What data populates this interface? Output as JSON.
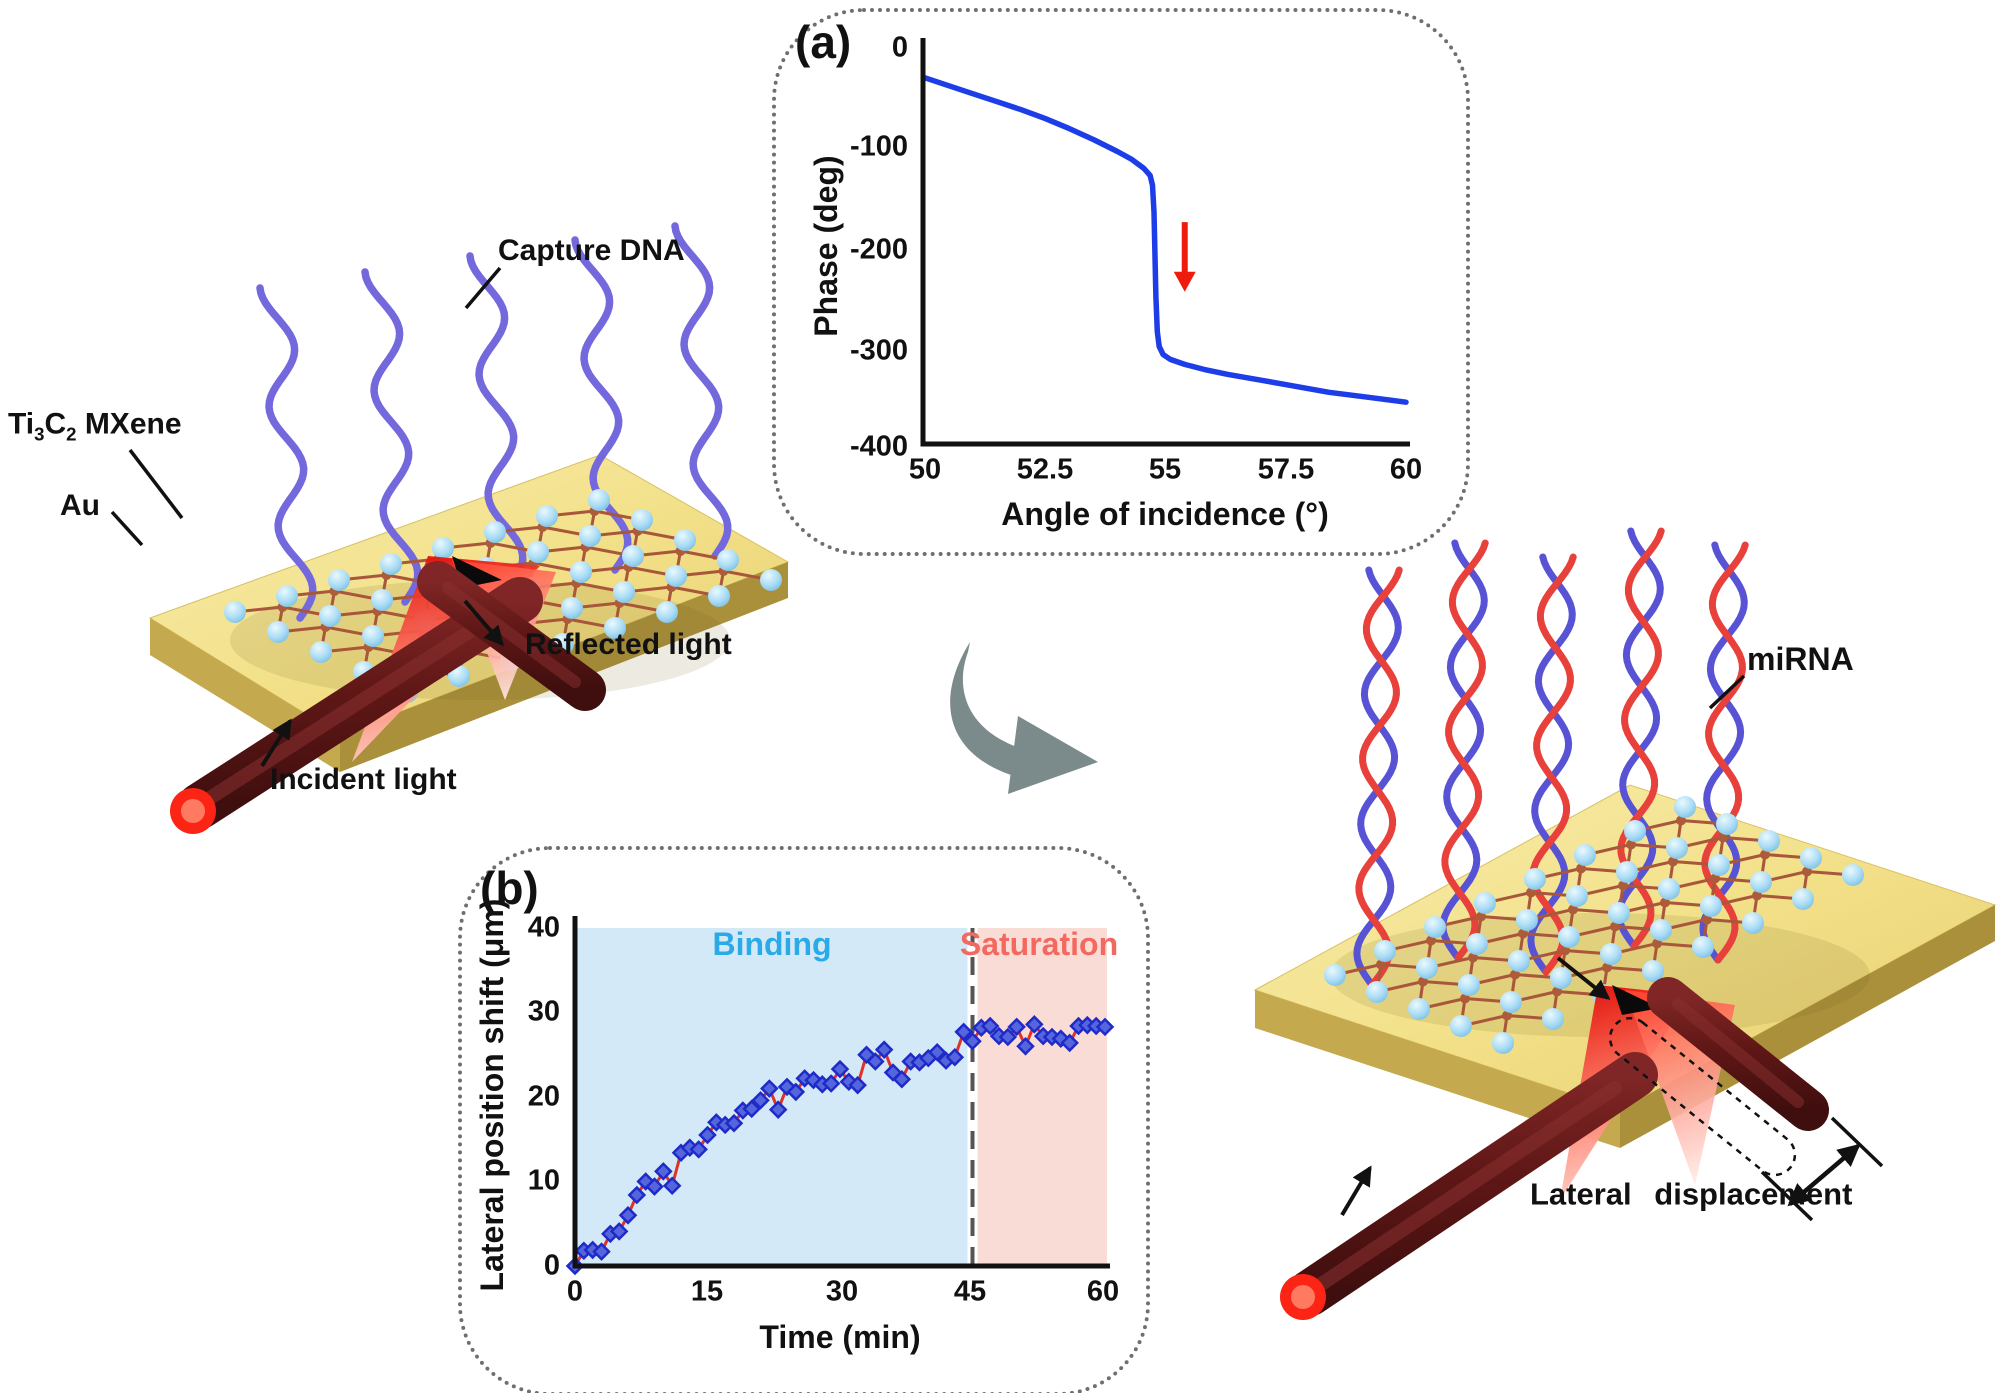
{
  "figure": {
    "panel_a_label": "(a)",
    "panel_b_label": "(b)"
  },
  "left_illustration": {
    "capture_dna_label": "Capture DNA",
    "mxene_label": {
      "pre": "Ti",
      "sub1": "3",
      "mid": "C",
      "sub2": "2",
      "post": " MXene"
    },
    "au_label": "Au",
    "reflected_light_label": "Reflected light",
    "incident_light_label": "Incident light"
  },
  "right_illustration": {
    "mirna_label": "miRNA",
    "lateral_displacement_label": "Lateral displacement"
  },
  "center": {
    "transition_arrow": "curved-gray-arrow"
  },
  "colors": {
    "curve_blue": "#1d3de8",
    "annotation_arrow_red": "#ee1c0c",
    "marker_blue_fill": "#5566dd",
    "marker_blue_edge": "#1f2bc8",
    "series_line_red": "#e03228",
    "binding_bg": "#d3e9f8",
    "saturation_bg": "#fadcd7",
    "binding_text": "#2aabe8",
    "saturation_text": "#f4695f",
    "gold_top": "#f3e18a",
    "gold_side": "#c4a94e",
    "beam_maroon": "#5f1716",
    "laser_cap_red": "#fb2415",
    "prism_red": "#e40f08",
    "ribbon_purple": "#7468dd",
    "helix_red": "#e8403a",
    "helix_blue": "#5753d4",
    "sphere_blue": "#aadcf5",
    "atom_brown": "#ad5b39",
    "gray_arrow": "#7b8a8a",
    "dotted_border": "#6f6f6f"
  },
  "chart_data": [
    {
      "id": "phase_vs_angle",
      "type": "line",
      "title": "",
      "xlabel": "Angle of incidence (°)",
      "ylabel": "Phase (deg)",
      "xlim": [
        50,
        60
      ],
      "ylim": [
        -400,
        0
      ],
      "xticks": [
        50,
        52.5,
        55,
        57.5,
        60
      ],
      "yticks": [
        0,
        -100,
        -200,
        -300,
        -400
      ],
      "grid": false,
      "legend": "none",
      "line_color": "#1d3de8",
      "annotation": {
        "type": "down-arrow",
        "color": "#ee1c0c",
        "x": 55.4,
        "y_from": -175,
        "y_to": -245
      },
      "points": [
        [
          50,
          -30
        ],
        [
          50.5,
          -38
        ],
        [
          51,
          -46
        ],
        [
          51.5,
          -54
        ],
        [
          52,
          -62
        ],
        [
          52.5,
          -71
        ],
        [
          53,
          -81
        ],
        [
          53.5,
          -92
        ],
        [
          54,
          -104
        ],
        [
          54.3,
          -112
        ],
        [
          54.55,
          -121
        ],
        [
          54.68,
          -128
        ],
        [
          54.73,
          -138
        ],
        [
          54.76,
          -165
        ],
        [
          54.78,
          -205
        ],
        [
          54.8,
          -250
        ],
        [
          54.83,
          -285
        ],
        [
          54.87,
          -300
        ],
        [
          54.95,
          -308
        ],
        [
          55.1,
          -313
        ],
        [
          55.4,
          -318
        ],
        [
          55.8,
          -323
        ],
        [
          56.3,
          -328
        ],
        [
          57,
          -334
        ],
        [
          57.7,
          -340
        ],
        [
          58.4,
          -346
        ],
        [
          59.2,
          -351
        ],
        [
          60,
          -356
        ]
      ]
    },
    {
      "id": "lateral_shift_vs_time",
      "type": "scatter",
      "title": "",
      "xlabel": "Time (min)",
      "ylabel": "Lateral position shift (μm)",
      "xlim": [
        0,
        60
      ],
      "ylim": [
        0,
        40
      ],
      "xticks": [
        0,
        15,
        30,
        45,
        60
      ],
      "yticks": [
        0,
        10,
        20,
        30,
        40
      ],
      "grid": false,
      "legend": "none",
      "divider_x": 45,
      "regions": [
        {
          "label": "Binding",
          "from": 0,
          "to": 45,
          "bg": "#d3e9f8",
          "label_color": "#2aabe8"
        },
        {
          "label": "Saturation",
          "from": 45,
          "to": 60,
          "bg": "#fadcd7",
          "label_color": "#f4695f"
        }
      ],
      "marker": "diamond",
      "marker_color": "#5566dd",
      "marker_edge": "#1f2bc8",
      "line_color": "#e03228",
      "x": [
        0,
        1,
        2,
        3,
        4,
        5,
        6,
        7,
        8,
        9,
        10,
        11,
        12,
        13,
        14,
        15,
        16,
        17,
        18,
        19,
        20,
        21,
        22,
        23,
        24,
        25,
        26,
        27,
        28,
        29,
        30,
        31,
        32,
        33,
        34,
        35,
        36,
        37,
        38,
        39,
        40,
        41,
        42,
        43,
        44,
        45,
        46,
        47,
        48,
        49,
        50,
        51,
        52,
        53,
        54,
        55,
        56,
        57,
        58,
        59,
        60
      ],
      "y": [
        0,
        1.8,
        1.9,
        1.7,
        3.8,
        4.1,
        6.0,
        8.4,
        10.0,
        9.4,
        11.2,
        9.5,
        13.4,
        14.0,
        13.8,
        15.5,
        17.0,
        16.7,
        16.9,
        18.4,
        18.6,
        19.6,
        21.0,
        18.5,
        21.2,
        20.6,
        22.2,
        22.0,
        21.5,
        21.6,
        23.3,
        21.8,
        21.4,
        25.0,
        24.2,
        25.6,
        22.9,
        22.1,
        24.2,
        24.1,
        24.6,
        25.3,
        24.3,
        24.7,
        27.7,
        26.6,
        28.2,
        28.4,
        27.2,
        27.1,
        28.3,
        26.0,
        28.6,
        27.2,
        27.1,
        26.9,
        26.4,
        28.4,
        28.5,
        28.4,
        28.3
      ]
    }
  ]
}
